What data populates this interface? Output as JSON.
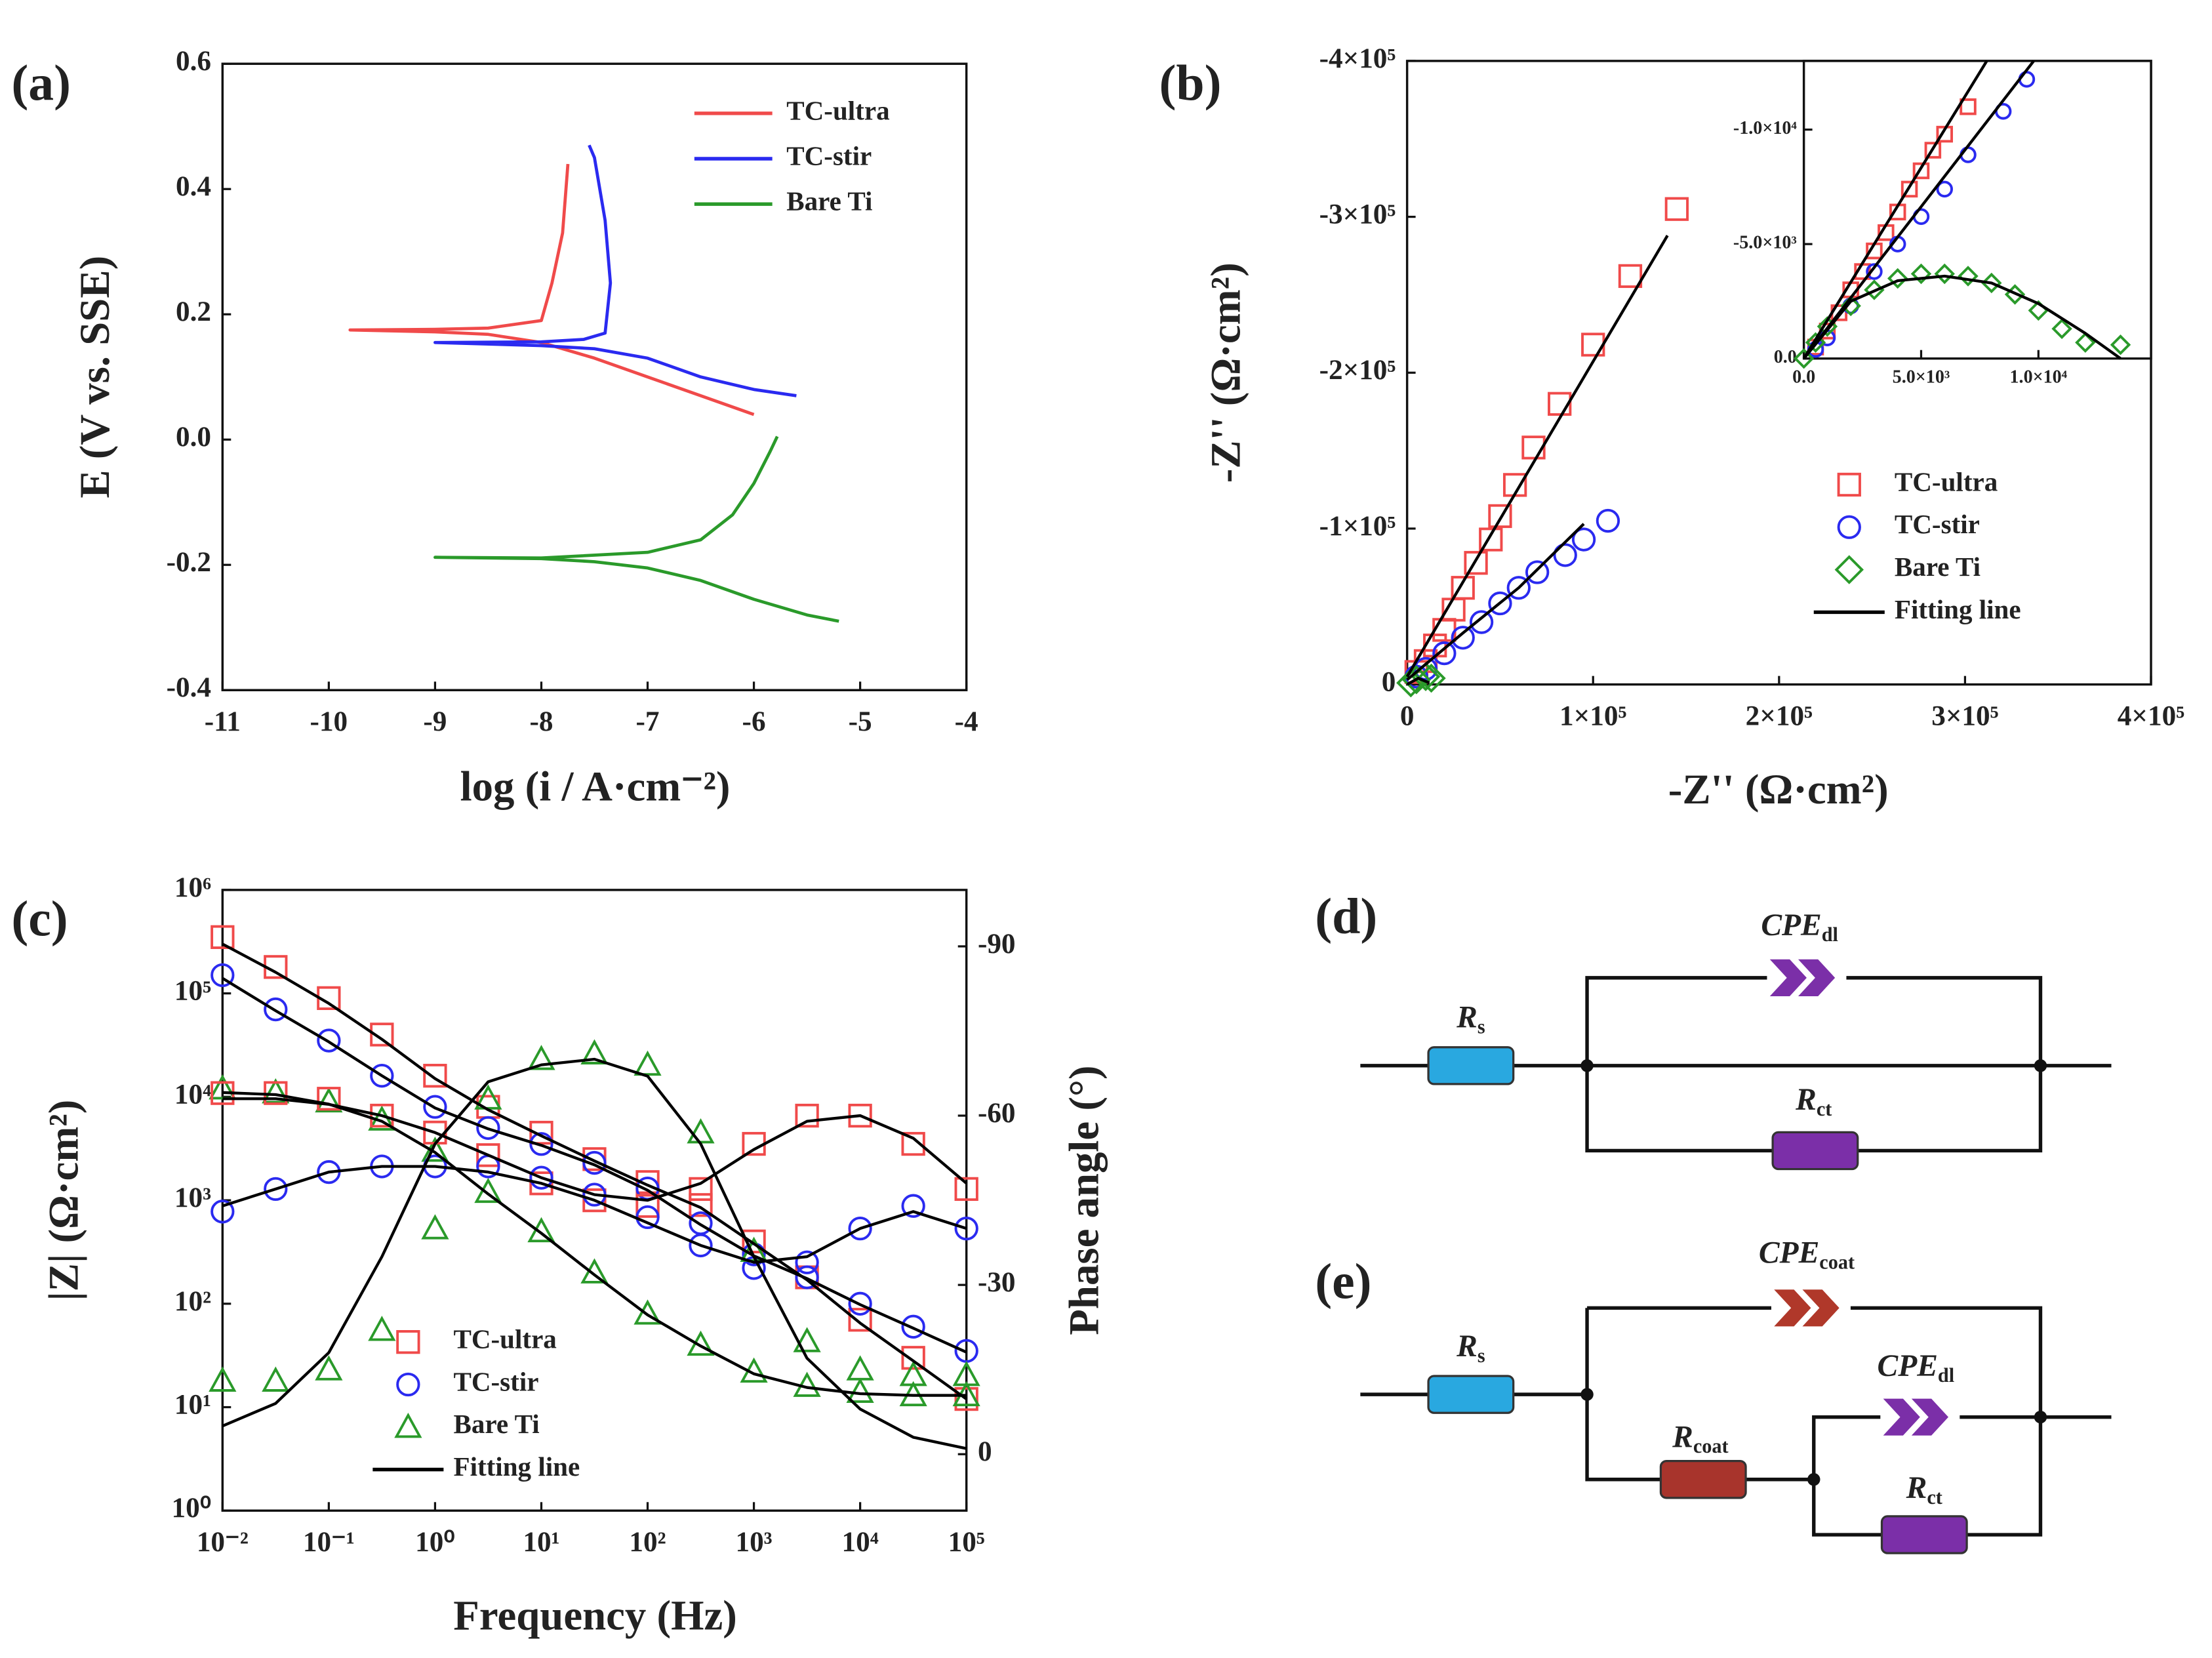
{
  "chart_data": [
    {
      "type": "line",
      "panel_label": "(a)",
      "xlabel": "log (i / A·cm⁻²)",
      "ylabel": "E (V vs. SSE)",
      "xlim": [
        -11,
        -4
      ],
      "xticks": [
        -11,
        -10,
        -9,
        -8,
        -7,
        -6,
        -5,
        -4
      ],
      "ylim": [
        -0.4,
        0.6
      ],
      "yticks": [
        -0.4,
        -0.2,
        {
          "value": 0,
          "label": "0.0"
        },
        0.2,
        0.4,
        0.6
      ],
      "legend": "upper right",
      "series": [
        {
          "name": "TC-ultra",
          "color": "#f04a4a",
          "x": [
            -6.0,
            -6.5,
            -7.0,
            -7.5,
            -8.0,
            -8.5,
            -9.0,
            -9.8,
            -9.0,
            -8.5,
            -8.0,
            -7.9,
            -7.8,
            -7.75
          ],
          "values": [
            0.04,
            0.07,
            0.1,
            0.13,
            0.155,
            0.168,
            0.172,
            0.175,
            0.176,
            0.178,
            0.19,
            0.25,
            0.33,
            0.44
          ]
        },
        {
          "name": "TC-stir",
          "color": "#2a2af0",
          "x": [
            -5.6,
            -6.0,
            -6.5,
            -7.0,
            -7.5,
            -8.0,
            -9.0,
            -8.0,
            -7.6,
            -7.4,
            -7.35,
            -7.4,
            -7.5,
            -7.55
          ],
          "values": [
            0.07,
            0.08,
            0.1,
            0.13,
            0.145,
            0.15,
            0.155,
            0.156,
            0.16,
            0.17,
            0.25,
            0.35,
            0.45,
            0.47
          ]
        },
        {
          "name": "Bare Ti",
          "color": "#2a9a2a",
          "x": [
            -5.2,
            -5.5,
            -6.0,
            -6.5,
            -7.0,
            -7.5,
            -8.0,
            -9.0,
            -8.0,
            -7.0,
            -6.5,
            -6.2,
            -6.0,
            -5.85,
            -5.78
          ],
          "values": [
            -0.29,
            -0.28,
            -0.255,
            -0.225,
            -0.205,
            -0.195,
            -0.19,
            -0.188,
            -0.189,
            -0.18,
            -0.16,
            -0.12,
            -0.07,
            -0.02,
            0.005
          ]
        }
      ]
    },
    {
      "type": "scatter",
      "panel_label": "(b)",
      "xlabel": "-Z'' (Ω·cm²)",
      "ylabel": "-Z'' (Ω·cm²)",
      "xlim": [
        0,
        400000
      ],
      "xticks": [
        0,
        {
          "value": 100000,
          "label": "1×10⁵"
        },
        {
          "value": 200000,
          "label": "2×10⁵"
        },
        {
          "value": 300000,
          "label": "3×10⁵"
        },
        {
          "value": 400000,
          "label": "4×10⁵"
        }
      ],
      "ylim": [
        0,
        -400000
      ],
      "yticks": [
        0,
        {
          "value": -100000,
          "label": "-1×10⁵"
        },
        {
          "value": -200000,
          "label": "-2×10⁵"
        },
        {
          "value": -300000,
          "label": "-3×10⁵"
        },
        {
          "value": -400000,
          "label": "-4×10⁵"
        }
      ],
      "legend": "right",
      "fit_legend": "Fitting line",
      "fit_color": "#000000",
      "series": [
        {
          "name": "TC-ultra",
          "color": "#f04a4a",
          "marker": "square",
          "x": [
            5000,
            10000,
            15000,
            20000,
            25000,
            30000,
            37000,
            45000,
            50000,
            58000,
            68000,
            82000,
            100000,
            120000,
            145000
          ],
          "values": [
            -8000,
            -15000,
            -25000,
            -35000,
            -48000,
            -62000,
            -78000,
            -93000,
            -108000,
            -128000,
            -152000,
            -180000,
            -218000,
            -262000,
            -305000
          ]
        },
        {
          "name": "TC-stir",
          "color": "#2a2af0",
          "marker": "circle",
          "x": [
            5000,
            10000,
            20000,
            30000,
            40000,
            50000,
            60000,
            70000,
            85000,
            95000,
            108000
          ],
          "values": [
            -5000,
            -10000,
            -20000,
            -30000,
            -40000,
            -52000,
            -62000,
            -72000,
            -83000,
            -93000,
            -105000
          ]
        },
        {
          "name": "Bare Ti",
          "color": "#2a9a2a",
          "marker": "diamond",
          "x": [
            2000,
            5000,
            10000,
            13000
          ],
          "values": [
            -1000,
            -3000,
            -5000,
            -4000
          ]
        }
      ],
      "fits": [
        {
          "x": [
            0,
            140000
          ],
          "values": [
            -5000,
            -288000
          ]
        },
        {
          "x": [
            0,
            30000,
            60000,
            95000
          ],
          "values": [
            -3000,
            -33000,
            -62000,
            -103000
          ]
        },
        {
          "x": [
            0,
            6000,
            12000
          ],
          "values": [
            0,
            -4000,
            -1000
          ]
        }
      ]
    },
    {
      "type": "scatter",
      "xlim": [
        0,
        14800
      ],
      "xticks": [
        {
          "value": 0,
          "label": "0.0"
        },
        {
          "value": 5000,
          "label": "5.0×10³"
        },
        {
          "value": 10000,
          "label": "1.0×10⁴"
        }
      ],
      "ylim": [
        0,
        -13000
      ],
      "yticks": [
        {
          "value": 0,
          "label": "0.0"
        },
        {
          "value": -5000,
          "label": "-5.0×10³"
        },
        {
          "value": -10000,
          "label": "-1.0×10⁴"
        }
      ],
      "fit_color": "#000000",
      "series": [
        {
          "color": "#f04a4a",
          "marker": "square",
          "x": [
            500,
            1000,
            1500,
            2000,
            2500,
            3000,
            3500,
            4000,
            4500,
            5000,
            5500,
            6000,
            7000
          ],
          "values": [
            -500,
            -1200,
            -2000,
            -3000,
            -3800,
            -4700,
            -5500,
            -6400,
            -7400,
            -8200,
            -9100,
            -9800,
            -11000
          ]
        },
        {
          "color": "#2a2af0",
          "marker": "circle",
          "x": [
            500,
            1000,
            2000,
            3000,
            4000,
            5000,
            6000,
            7000,
            8500,
            9500
          ],
          "values": [
            -400,
            -900,
            -2300,
            -3800,
            -5000,
            -6200,
            -7400,
            -8900,
            -10800,
            -12200
          ]
        },
        {
          "color": "#2a9a2a",
          "marker": "diamond",
          "x": [
            0,
            500,
            1000,
            2000,
            3000,
            4000,
            5000,
            6000,
            7000,
            8000,
            9000,
            10000,
            11000,
            12000,
            13500
          ],
          "values": [
            0,
            -700,
            -1400,
            -2300,
            -3000,
            -3500,
            -3700,
            -3700,
            -3600,
            -3300,
            -2800,
            -2100,
            -1300,
            -700,
            -600
          ]
        }
      ],
      "fits": [
        {
          "x": [
            0,
            7800
          ],
          "values": [
            0,
            -13000
          ]
        },
        {
          "x": [
            0,
            9800
          ],
          "values": [
            0,
            -13000
          ]
        },
        {
          "x": [
            0,
            2000,
            4000,
            6000,
            8000,
            10000,
            12000,
            13500
          ],
          "values": [
            0,
            -2500,
            -3400,
            -3600,
            -3300,
            -2400,
            -1100,
            0
          ]
        }
      ]
    },
    {
      "type": "scatter",
      "panel_label": "(c)",
      "xlabel": "Frequency (Hz)",
      "ylabel": "|Z| (Ω·cm²)",
      "y2label": "Phase angle (°)",
      "xscale": "log",
      "yscale": "log",
      "legend": "lower left",
      "fit_legend": "Fitting line",
      "fit_color": "#000000",
      "xlim": [
        0.01,
        100000
      ],
      "xticks": [
        {
          "value": 0.01,
          "label": "10⁻²"
        },
        {
          "value": 0.1,
          "label": "10⁻¹"
        },
        {
          "value": 1,
          "label": "10⁰"
        },
        {
          "value": 10,
          "label": "10¹"
        },
        {
          "value": 100,
          "label": "10²"
        },
        {
          "value": 1000,
          "label": "10³"
        },
        {
          "value": 10000,
          "label": "10⁴"
        },
        {
          "value": 100000,
          "label": "10⁵"
        }
      ],
      "ylim": [
        1,
        1000000
      ],
      "yticks": [
        {
          "value": 1,
          "label": "10⁰"
        },
        {
          "value": 10,
          "label": "10¹"
        },
        {
          "value": 100,
          "label": "10²"
        },
        {
          "value": 1000,
          "label": "10³"
        },
        {
          "value": 10000,
          "label": "10⁴"
        },
        {
          "value": 100000,
          "label": "10⁵"
        },
        {
          "value": 1000000,
          "label": "10⁶"
        }
      ],
      "y2lim": [
        10,
        -100
      ],
      "y2ticks": [
        0,
        -30,
        -60,
        -90
      ],
      "x": [
        0.01,
        0.0316,
        0.1,
        0.316,
        1,
        3.16,
        10,
        31.6,
        100,
        316,
        1000,
        3162,
        10000,
        31623,
        100000
      ],
      "series": [
        {
          "name": "TC-ultra",
          "color": "#f04a4a",
          "marker": "square",
          "values": [
            350000,
            180000,
            90000,
            40000,
            16000,
            8000,
            4500,
            2500,
            1500,
            900,
            400,
            180,
            70,
            30,
            12
          ]
        },
        {
          "name": "TC-stir",
          "color": "#2a2af0",
          "marker": "circle",
          "values": [
            150000,
            70000,
            35000,
            16000,
            8000,
            5000,
            3500,
            2300,
            1300,
            600,
            300,
            180,
            100,
            60,
            35
          ]
        },
        {
          "name": "Bare Ti",
          "color": "#2a9a2a",
          "marker": "triangle",
          "values": [
            12000,
            11000,
            9000,
            6000,
            3000,
            1200,
            500,
            200,
            80,
            40,
            22,
            16,
            14,
            13,
            13
          ]
        },
        {
          "color": "#f04a4a",
          "marker": "square",
          "axis": "y2",
          "values": [
            -64,
            -64,
            -63,
            -60,
            -57,
            -53,
            -48,
            -45,
            -44,
            -47,
            -55,
            -60,
            -60,
            -55,
            -47
          ]
        },
        {
          "color": "#2a2af0",
          "marker": "circle",
          "axis": "y2",
          "values": [
            -43,
            -47,
            -50,
            -51,
            -51,
            -51,
            -49,
            -46,
            -42,
            -37,
            -33,
            -34,
            -40,
            -44,
            -40
          ]
        },
        {
          "color": "#2a9a2a",
          "marker": "triangle",
          "axis": "y2",
          "values": [
            -13,
            -13,
            -15,
            -22,
            -40,
            -63,
            -70,
            -71,
            -69,
            -57,
            -36,
            -20,
            -15,
            -14,
            -14
          ]
        }
      ],
      "fits": [
        {
          "values": [
            300000,
            160000,
            80000,
            36000,
            15000,
            7500,
            4200,
            2400,
            1400,
            850,
            380,
            170,
            65,
            28,
            12
          ]
        },
        {
          "values": [
            140000,
            68000,
            34000,
            16000,
            7800,
            4900,
            3400,
            2200,
            1250,
            580,
            290,
            175,
            98,
            58,
            34
          ]
        },
        {
          "values": [
            11000,
            10500,
            8500,
            5800,
            2900,
            1150,
            480,
            190,
            78,
            39,
            21,
            15.5,
            13.5,
            13,
            13
          ]
        },
        {
          "axis": "y2",
          "values": [
            -63,
            -63,
            -62,
            -60,
            -57,
            -53,
            -49,
            -46,
            -45,
            -48,
            -54,
            -59,
            -60,
            -56,
            -48
          ]
        },
        {
          "axis": "y2",
          "values": [
            -44,
            -47,
            -50,
            -51,
            -51,
            -50,
            -48,
            -45,
            -41,
            -37,
            -34,
            -35,
            -40,
            -43,
            -40
          ]
        },
        {
          "axis": "y2",
          "values": [
            -5,
            -9,
            -18,
            -35,
            -55,
            -66,
            -69,
            -70,
            -67,
            -55,
            -35,
            -17,
            -8,
            -3,
            -1
          ]
        }
      ]
    }
  ],
  "circuits": [
    {
      "label": "(d)",
      "components": [
        {
          "symbol": "R",
          "sub": "s"
        },
        {
          "symbol": "CPE",
          "sub": "dl"
        },
        {
          "symbol": "R",
          "sub": "ct"
        }
      ]
    },
    {
      "label": "(e)",
      "components": [
        {
          "symbol": "R",
          "sub": "s"
        },
        {
          "symbol": "CPE",
          "sub": "coat"
        },
        {
          "symbol": "R",
          "sub": "coat"
        },
        {
          "symbol": "CPE",
          "sub": "dl"
        },
        {
          "symbol": "R",
          "sub": "ct"
        }
      ]
    }
  ]
}
